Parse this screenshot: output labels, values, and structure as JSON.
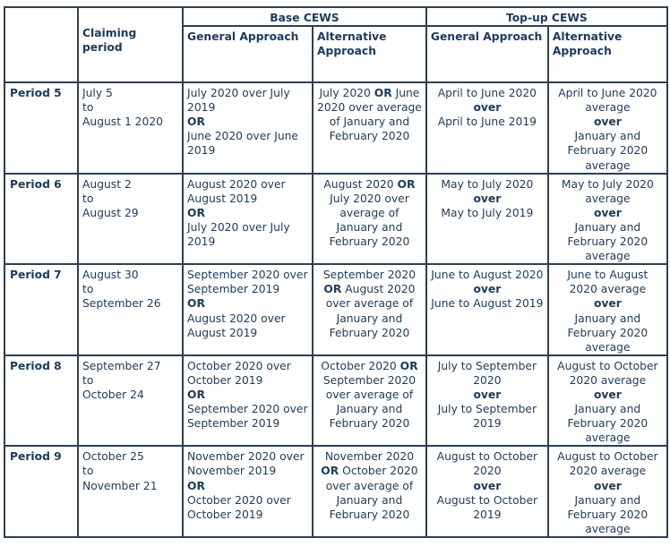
{
  "header": {
    "claiming_period": "Claiming period",
    "base_cews": "Base CEWS",
    "topup_cews": "Top-up CEWS",
    "base_general": "General Approach",
    "base_alternative": "Alternative Approach",
    "topup_general": "General Approach",
    "topup_alternative": "Alternative Approach"
  },
  "rows": [
    {
      "period": "Period 5",
      "claiming": [
        "July 5",
        "to",
        "August 1 2020"
      ],
      "base_general": [
        "July 2020 over July",
        "2019",
        "OR",
        "June 2020 over June",
        "2019"
      ],
      "base_alternative": [
        "July 2020 OR June",
        "2020 over average",
        "of January and",
        "February 2020"
      ],
      "topup_general": [
        "April to June 2020",
        "over",
        "April to June 2019"
      ],
      "topup_alternative": [
        "April to June 2020",
        "average",
        "over",
        "January and",
        "February 2020",
        "average"
      ]
    },
    {
      "period": "Period 6",
      "claiming": [
        "August 2",
        "to",
        "August 29"
      ],
      "base_general": [
        "August 2020 over",
        "August 2019",
        "OR",
        "July 2020 over July",
        "2019"
      ],
      "base_alternative": [
        "August 2020 OR",
        "July 2020 over",
        "average of",
        "January and",
        "February 2020"
      ],
      "topup_general": [
        "May to July 2020",
        "over",
        "May to July 2019"
      ],
      "topup_alternative": [
        "May to July 2020",
        "average",
        "over",
        "January and",
        "February 2020",
        "average"
      ]
    },
    {
      "period": "Period 7",
      "claiming": [
        "August 30",
        "to",
        "September 26"
      ],
      "base_general": [
        "September 2020 over",
        "September 2019",
        "OR",
        "August 2020 over",
        "August 2019"
      ],
      "base_alternative": [
        "September 2020",
        "OR August 2020",
        "over average of",
        "January and",
        "February 2020"
      ],
      "topup_general": [
        "June to August 2020",
        "over",
        "June to August 2019"
      ],
      "topup_alternative": [
        "June to August",
        "2020 average",
        "over",
        "January and",
        "February 2020",
        "average"
      ]
    },
    {
      "period": "Period 8",
      "claiming": [
        "September 27",
        "to",
        "October 24"
      ],
      "base_general": [
        "October 2020 over",
        "October 2019",
        "OR",
        "September 2020 over",
        "September 2019"
      ],
      "base_alternative": [
        "October 2020 OR",
        "September 2020",
        "over average of",
        "January and",
        "February 2020"
      ],
      "topup_general": [
        "July to September",
        "2020",
        "over",
        "July to September",
        "2019"
      ],
      "topup_alternative": [
        "August to October",
        "2020 average",
        "over",
        "January and",
        "February 2020",
        "average"
      ]
    },
    {
      "period": "Period 9",
      "claiming": [
        "October 25",
        "to",
        "November 21"
      ],
      "base_general": [
        "November 2020 over",
        "November 2019",
        "OR",
        "October 2020 over",
        "October 2019"
      ],
      "base_alternative": [
        "November 2020",
        "OR October 2020",
        "over average of",
        "January and",
        "February 2020"
      ],
      "topup_general": [
        "August to October",
        "2020",
        "over",
        "August to October",
        "2019"
      ],
      "topup_alternative": [
        "August to October",
        "2020 average",
        "over",
        "January and",
        "February 2020",
        "average"
      ]
    }
  ]
}
